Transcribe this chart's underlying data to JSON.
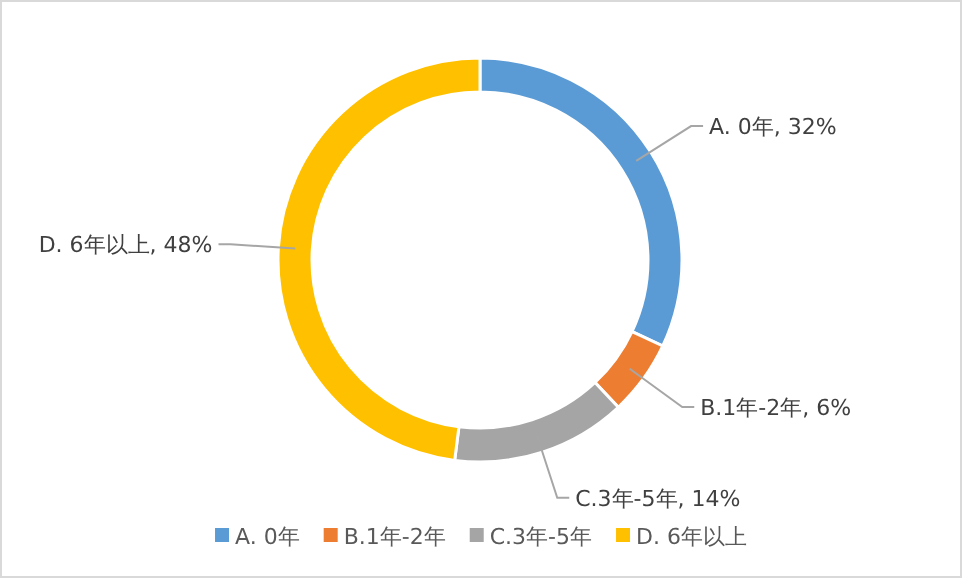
{
  "chart_data": {
    "type": "donut",
    "categories": [
      "A. 0年",
      "B.1年-2年",
      "C.3年-5年",
      "D. 6年以上"
    ],
    "values": [
      32,
      6,
      14,
      48
    ],
    "colors": [
      "#5b9bd5",
      "#ed7d31",
      "#a5a5a5",
      "#ffc000"
    ],
    "value_labels": [
      "A. 0年, 32%",
      "B.1年-2年, 6%",
      "C.3年-5年, 14%",
      "D. 6年以上, 48%"
    ],
    "legend": "bottom"
  }
}
